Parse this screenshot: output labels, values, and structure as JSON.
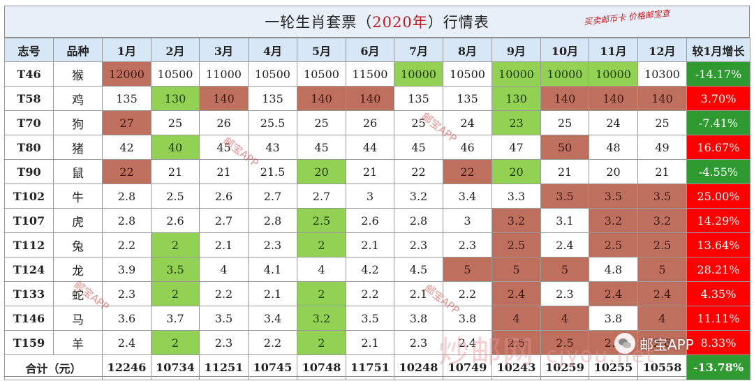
{
  "title": {
    "prefix": "一轮生肖套票（",
    "year": "2020年",
    "suffix": "）行情表"
  },
  "slogan": "买卖邮币卡 价格邮宝查",
  "headers": [
    "志号",
    "品种",
    "1月",
    "2月",
    "3月",
    "4月",
    "5月",
    "6月",
    "7月",
    "8月",
    "9月",
    "10月",
    "11月",
    "12月",
    "较1月增长"
  ],
  "rows": [
    {
      "code": "T46",
      "animal": "猴",
      "values": [
        "12000",
        "10500",
        "11000",
        "10500",
        "10500",
        "11500",
        "10000",
        "10500",
        "10000",
        "10000",
        "10000",
        "10300"
      ],
      "change": "-14.17%"
    },
    {
      "code": "T58",
      "animal": "鸡",
      "values": [
        "135",
        "130",
        "140",
        "135",
        "140",
        "140",
        "135",
        "135",
        "130",
        "140",
        "140",
        "140"
      ],
      "change": "3.70%"
    },
    {
      "code": "T70",
      "animal": "狗",
      "values": [
        "27",
        "25",
        "26",
        "25.5",
        "25",
        "26",
        "25",
        "24",
        "23",
        "25",
        "24",
        "25"
      ],
      "change": "-7.41%"
    },
    {
      "code": "T80",
      "animal": "猪",
      "values": [
        "42",
        "40",
        "45",
        "43",
        "45",
        "44",
        "45",
        "46",
        "47",
        "50",
        "48",
        "49"
      ],
      "change": "16.67%"
    },
    {
      "code": "T90",
      "animal": "鼠",
      "values": [
        "22",
        "21",
        "21",
        "21.5",
        "20",
        "21",
        "22",
        "22",
        "20",
        "21",
        "20",
        "21"
      ],
      "change": "-4.55%"
    },
    {
      "code": "T102",
      "animal": "牛",
      "values": [
        "2.8",
        "2.5",
        "2.6",
        "2.7",
        "2.7",
        "3",
        "3.2",
        "3.4",
        "3.3",
        "3.5",
        "3.5",
        "3.5"
      ],
      "change": "25.00%"
    },
    {
      "code": "T107",
      "animal": "虎",
      "values": [
        "2.8",
        "2.6",
        "2.7",
        "2.8",
        "2.5",
        "2.6",
        "2.8",
        "3",
        "3.2",
        "3.1",
        "3.2",
        "3.2"
      ],
      "change": "14.29%"
    },
    {
      "code": "T112",
      "animal": "兔",
      "values": [
        "2.2",
        "2",
        "2.1",
        "2.3",
        "2",
        "2.1",
        "2.3",
        "2.3",
        "2.5",
        "2.4",
        "2.5",
        "2.5"
      ],
      "change": "13.64%"
    },
    {
      "code": "T124",
      "animal": "龙",
      "values": [
        "3.9",
        "3.5",
        "4",
        "4.1",
        "4",
        "4.2",
        "4.5",
        "5",
        "5",
        "5",
        "4.8",
        "5"
      ],
      "change": "28.21%"
    },
    {
      "code": "T133",
      "animal": "蛇",
      "values": [
        "2.3",
        "2",
        "2.2",
        "2.1",
        "2",
        "2.2",
        "2.1",
        "2.2",
        "2.4",
        "2.3",
        "2.4",
        "2.4"
      ],
      "change": "4.35%"
    },
    {
      "code": "T146",
      "animal": "马",
      "values": [
        "3.6",
        "3.7",
        "3.5",
        "3.4",
        "3.2",
        "3.5",
        "3.8",
        "3.8",
        "4",
        "4",
        "3.8",
        "4"
      ],
      "change": "11.11%"
    },
    {
      "code": "T159",
      "animal": "羊",
      "values": [
        "2.4",
        "2",
        "2.3",
        "2.2",
        "2",
        "2.1",
        "2.3",
        "2.4",
        "2.5",
        "2.5",
        "2.5",
        "2.6"
      ],
      "change": "8.33%"
    }
  ],
  "totals": {
    "label": "合计（元）",
    "values": [
      "12246",
      "10734",
      "11251",
      "10745",
      "10748",
      "11751",
      "10248",
      "10749",
      "10243",
      "10259",
      "10255",
      "10558"
    ],
    "change": "-13.78%"
  },
  "highlight": {
    "hi": [
      [
        0
      ],
      [
        2,
        4,
        5,
        9,
        10,
        11
      ],
      [
        0
      ],
      [
        9
      ],
      [
        0,
        7
      ],
      [
        9,
        10,
        11
      ],
      [
        8,
        10,
        11
      ],
      [
        8,
        10,
        11
      ],
      [
        7,
        8,
        9,
        11
      ],
      [
        8,
        10,
        11
      ],
      [
        8,
        9,
        11
      ],
      [
        8,
        9,
        10,
        11
      ]
    ],
    "lo": [
      [
        6,
        8,
        9,
        10
      ],
      [
        1,
        8
      ],
      [
        8
      ],
      [
        1
      ],
      [
        4,
        8
      ],
      [],
      [
        4
      ],
      [
        1,
        4
      ],
      [
        1
      ],
      [
        1,
        4
      ],
      [
        4
      ],
      [
        1,
        4
      ]
    ],
    "up_color": "#ff0000",
    "down_color": "#2f9a2f"
  },
  "watermarks": {
    "app_label": "邮宝APP",
    "site": "炒邮网",
    "site_domain": "cjyou.net",
    "wechat_label": "邮宝APP"
  }
}
